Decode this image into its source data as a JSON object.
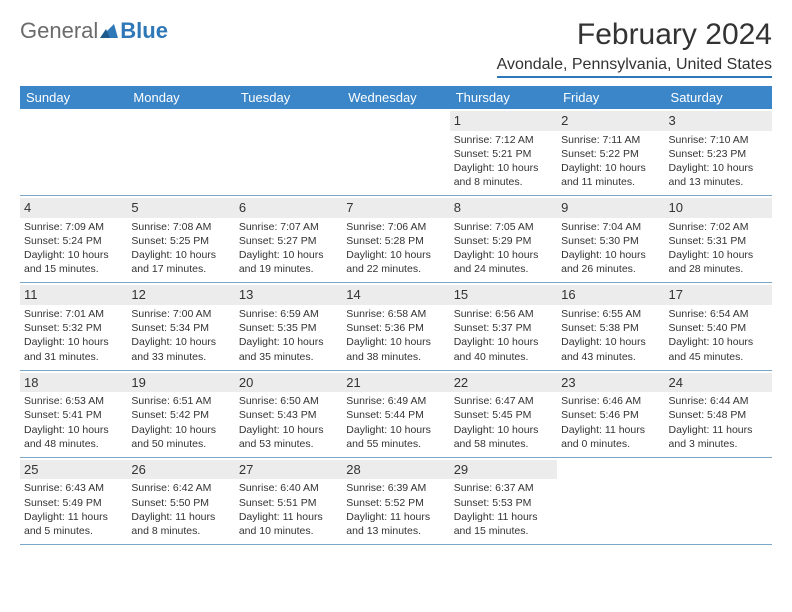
{
  "logo": {
    "general": "General",
    "blue": "Blue"
  },
  "title": "February 2024",
  "location": "Avondale, Pennsylvania, United States",
  "colors": {
    "header_bg": "#3a86c8",
    "header_text": "#ffffff",
    "daynum_bg": "#ececec",
    "text": "#333333",
    "rule": "#2f78b7",
    "logo_gray": "#6b6b6b",
    "logo_blue": "#2f78b7"
  },
  "dow": [
    "Sunday",
    "Monday",
    "Tuesday",
    "Wednesday",
    "Thursday",
    "Friday",
    "Saturday"
  ],
  "weeks": [
    [
      {
        "n": "",
        "empty": true
      },
      {
        "n": "",
        "empty": true
      },
      {
        "n": "",
        "empty": true
      },
      {
        "n": "",
        "empty": true
      },
      {
        "n": "1",
        "sr": "7:12 AM",
        "ss": "5:21 PM",
        "dl": "10 hours and 8 minutes."
      },
      {
        "n": "2",
        "sr": "7:11 AM",
        "ss": "5:22 PM",
        "dl": "10 hours and 11 minutes."
      },
      {
        "n": "3",
        "sr": "7:10 AM",
        "ss": "5:23 PM",
        "dl": "10 hours and 13 minutes."
      }
    ],
    [
      {
        "n": "4",
        "sr": "7:09 AM",
        "ss": "5:24 PM",
        "dl": "10 hours and 15 minutes."
      },
      {
        "n": "5",
        "sr": "7:08 AM",
        "ss": "5:25 PM",
        "dl": "10 hours and 17 minutes."
      },
      {
        "n": "6",
        "sr": "7:07 AM",
        "ss": "5:27 PM",
        "dl": "10 hours and 19 minutes."
      },
      {
        "n": "7",
        "sr": "7:06 AM",
        "ss": "5:28 PM",
        "dl": "10 hours and 22 minutes."
      },
      {
        "n": "8",
        "sr": "7:05 AM",
        "ss": "5:29 PM",
        "dl": "10 hours and 24 minutes."
      },
      {
        "n": "9",
        "sr": "7:04 AM",
        "ss": "5:30 PM",
        "dl": "10 hours and 26 minutes."
      },
      {
        "n": "10",
        "sr": "7:02 AM",
        "ss": "5:31 PM",
        "dl": "10 hours and 28 minutes."
      }
    ],
    [
      {
        "n": "11",
        "sr": "7:01 AM",
        "ss": "5:32 PM",
        "dl": "10 hours and 31 minutes."
      },
      {
        "n": "12",
        "sr": "7:00 AM",
        "ss": "5:34 PM",
        "dl": "10 hours and 33 minutes."
      },
      {
        "n": "13",
        "sr": "6:59 AM",
        "ss": "5:35 PM",
        "dl": "10 hours and 35 minutes."
      },
      {
        "n": "14",
        "sr": "6:58 AM",
        "ss": "5:36 PM",
        "dl": "10 hours and 38 minutes."
      },
      {
        "n": "15",
        "sr": "6:56 AM",
        "ss": "5:37 PM",
        "dl": "10 hours and 40 minutes."
      },
      {
        "n": "16",
        "sr": "6:55 AM",
        "ss": "5:38 PM",
        "dl": "10 hours and 43 minutes."
      },
      {
        "n": "17",
        "sr": "6:54 AM",
        "ss": "5:40 PM",
        "dl": "10 hours and 45 minutes."
      }
    ],
    [
      {
        "n": "18",
        "sr": "6:53 AM",
        "ss": "5:41 PM",
        "dl": "10 hours and 48 minutes."
      },
      {
        "n": "19",
        "sr": "6:51 AM",
        "ss": "5:42 PM",
        "dl": "10 hours and 50 minutes."
      },
      {
        "n": "20",
        "sr": "6:50 AM",
        "ss": "5:43 PM",
        "dl": "10 hours and 53 minutes."
      },
      {
        "n": "21",
        "sr": "6:49 AM",
        "ss": "5:44 PM",
        "dl": "10 hours and 55 minutes."
      },
      {
        "n": "22",
        "sr": "6:47 AM",
        "ss": "5:45 PM",
        "dl": "10 hours and 58 minutes."
      },
      {
        "n": "23",
        "sr": "6:46 AM",
        "ss": "5:46 PM",
        "dl": "11 hours and 0 minutes."
      },
      {
        "n": "24",
        "sr": "6:44 AM",
        "ss": "5:48 PM",
        "dl": "11 hours and 3 minutes."
      }
    ],
    [
      {
        "n": "25",
        "sr": "6:43 AM",
        "ss": "5:49 PM",
        "dl": "11 hours and 5 minutes."
      },
      {
        "n": "26",
        "sr": "6:42 AM",
        "ss": "5:50 PM",
        "dl": "11 hours and 8 minutes."
      },
      {
        "n": "27",
        "sr": "6:40 AM",
        "ss": "5:51 PM",
        "dl": "11 hours and 10 minutes."
      },
      {
        "n": "28",
        "sr": "6:39 AM",
        "ss": "5:52 PM",
        "dl": "11 hours and 13 minutes."
      },
      {
        "n": "29",
        "sr": "6:37 AM",
        "ss": "5:53 PM",
        "dl": "11 hours and 15 minutes."
      },
      {
        "n": "",
        "empty": true
      },
      {
        "n": "",
        "empty": true
      }
    ]
  ],
  "labels": {
    "sunrise": "Sunrise:",
    "sunset": "Sunset:",
    "daylight": "Daylight:"
  }
}
